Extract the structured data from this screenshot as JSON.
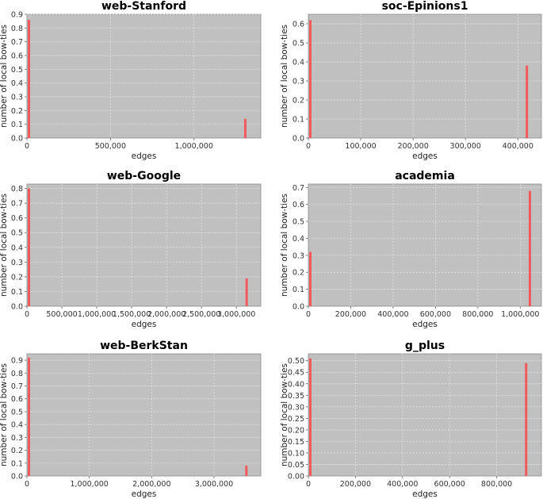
{
  "chart_data": [
    {
      "type": "bar",
      "title": "web-Stanford",
      "xlabel": "edges",
      "ylabel": "number of local bow-ties",
      "xlim": [
        0,
        1400000
      ],
      "ylim": [
        0,
        0.9
      ],
      "xticks": [
        0,
        500000,
        1000000
      ],
      "xtick_labels": [
        "0",
        "500,000",
        "1,000,000"
      ],
      "yticks": [
        0,
        0.1,
        0.2,
        0.3,
        0.4,
        0.5,
        0.6,
        0.7,
        0.8,
        0.9
      ],
      "ytick_labels": [
        "0.0",
        "0.1",
        "0.2",
        "0.3",
        "0.4",
        "0.5",
        "0.6",
        "0.7",
        "0.8",
        "0.9"
      ],
      "grid": true,
      "bar_color": "#f05a5a",
      "background": "#c0c0c0",
      "bars": [
        {
          "x": 0,
          "y": 0.86
        },
        {
          "x": 1300000,
          "y": 0.14
        }
      ]
    },
    {
      "type": "bar",
      "title": "soc-Epinions1",
      "xlabel": "edges",
      "ylabel": "number of local bow-ties",
      "xlim": [
        0,
        445000
      ],
      "ylim": [
        0,
        0.65
      ],
      "xticks": [
        0,
        100000,
        200000,
        300000,
        400000
      ],
      "xtick_labels": [
        "0",
        "100,000",
        "200,000",
        "300,000",
        "400,000"
      ],
      "yticks": [
        0,
        0.1,
        0.2,
        0.3,
        0.4,
        0.5,
        0.6
      ],
      "ytick_labels": [
        "0.0",
        "0.1",
        "0.2",
        "0.3",
        "0.4",
        "0.5",
        "0.6"
      ],
      "grid": true,
      "bar_color": "#f05a5a",
      "background": "#c0c0c0",
      "bars": [
        {
          "x": 0,
          "y": 0.62
        },
        {
          "x": 415000,
          "y": 0.38
        }
      ]
    },
    {
      "type": "bar",
      "title": "web-Google",
      "xlabel": "edges",
      "ylabel": "number of local bow-ties",
      "xlim": [
        0,
        3350000
      ],
      "ylim": [
        0,
        0.83
      ],
      "xticks": [
        0,
        500000,
        1000000,
        1500000,
        2000000,
        2500000,
        3000000
      ],
      "xtick_labels": [
        "0",
        "500,000",
        "1,000,000",
        "1,500,000",
        "2,000,000",
        "2,500,000",
        "3,000,000"
      ],
      "yticks": [
        0,
        0.1,
        0.2,
        0.3,
        0.4,
        0.5,
        0.6,
        0.7,
        0.8
      ],
      "ytick_labels": [
        "0.0",
        "0.1",
        "0.2",
        "0.3",
        "0.4",
        "0.5",
        "0.6",
        "0.7",
        "0.8"
      ],
      "grid": true,
      "bar_color": "#f05a5a",
      "background": "#c0c0c0",
      "bars": [
        {
          "x": 0,
          "y": 0.8
        },
        {
          "x": 3130000,
          "y": 0.19
        }
      ]
    },
    {
      "type": "bar",
      "title": "academia",
      "xlabel": "edges",
      "ylabel": "number of local bow-ties",
      "xlim": [
        0,
        1100000
      ],
      "ylim": [
        0,
        0.72
      ],
      "xticks": [
        0,
        200000,
        400000,
        600000,
        800000,
        1000000
      ],
      "xtick_labels": [
        "0",
        "200,000",
        "400,000",
        "600,000",
        "800,000",
        "1,000,000"
      ],
      "yticks": [
        0,
        0.1,
        0.2,
        0.3,
        0.4,
        0.5,
        0.6,
        0.7
      ],
      "ytick_labels": [
        "0.0",
        "0.1",
        "0.2",
        "0.3",
        "0.4",
        "0.5",
        "0.6",
        "0.7"
      ],
      "grid": true,
      "bar_color": "#f05a5a",
      "background": "#c0c0c0",
      "bars": [
        {
          "x": 0,
          "y": 0.32
        },
        {
          "x": 1040000,
          "y": 0.68
        }
      ]
    },
    {
      "type": "bar",
      "title": "web-BerkStan",
      "xlabel": "edges",
      "ylabel": "number of local bow-ties",
      "xlim": [
        0,
        3750000
      ],
      "ylim": [
        0,
        0.95
      ],
      "xticks": [
        0,
        1000000,
        2000000,
        3000000
      ],
      "xtick_labels": [
        "0",
        "1,000,000",
        "2,000,000",
        "3,000,000"
      ],
      "yticks": [
        0,
        0.1,
        0.2,
        0.3,
        0.4,
        0.5,
        0.6,
        0.7,
        0.8,
        0.9
      ],
      "ytick_labels": [
        "0.0",
        "0.1",
        "0.2",
        "0.3",
        "0.4",
        "0.5",
        "0.6",
        "0.7",
        "0.8",
        "0.9"
      ],
      "grid": true,
      "bar_color": "#f05a5a",
      "background": "#c0c0c0",
      "bars": [
        {
          "x": 0,
          "y": 0.92
        },
        {
          "x": 3500000,
          "y": 0.08
        }
      ]
    },
    {
      "type": "bar",
      "title": "g_plus",
      "xlabel": "edges",
      "ylabel": "number of local bow-ties",
      "xlim": [
        0,
        990000
      ],
      "ylim": [
        0,
        0.53
      ],
      "xticks": [
        0,
        200000,
        400000,
        600000,
        800000
      ],
      "xtick_labels": [
        "0",
        "200,000",
        "400,000",
        "600,000",
        "800,000"
      ],
      "yticks": [
        0,
        0.05,
        0.1,
        0.15,
        0.2,
        0.25,
        0.3,
        0.35,
        0.4,
        0.45,
        0.5
      ],
      "ytick_labels": [
        "0.00",
        "0.05",
        "0.10",
        "0.15",
        "0.20",
        "0.25",
        "0.30",
        "0.35",
        "0.40",
        "0.45",
        "0.50"
      ],
      "grid": true,
      "bar_color": "#f05a5a",
      "background": "#c0c0c0",
      "bars": [
        {
          "x": 0,
          "y": 0.51
        },
        {
          "x": 920000,
          "y": 0.49
        }
      ]
    }
  ]
}
